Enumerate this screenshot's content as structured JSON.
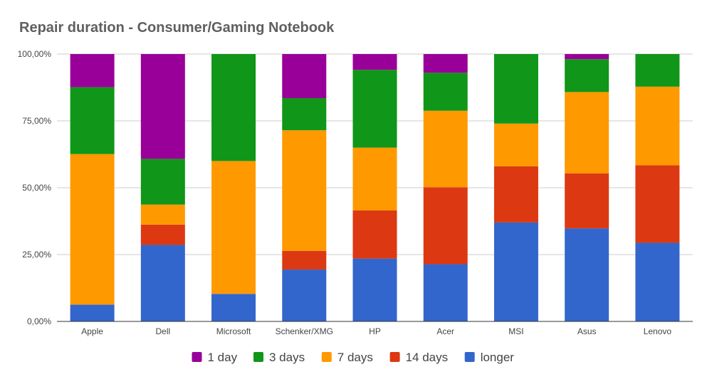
{
  "chart_data": {
    "type": "bar",
    "stacked": true,
    "percent": true,
    "title": "Repair duration - Consumer/Gaming Notebook",
    "xlabel": "",
    "ylabel": "",
    "ylim": [
      0,
      100
    ],
    "yticks": [
      0,
      25,
      50,
      75,
      100
    ],
    "ytick_labels": [
      "0,00%",
      "25,00%",
      "50,00%",
      "75,00%",
      "100,00%"
    ],
    "grid": true,
    "legend_position": "bottom",
    "categories": [
      "Apple",
      "Dell",
      "Microsoft",
      "Schenker/XMG",
      "HP",
      "Acer",
      "MSI",
      "Asus",
      "Lenovo"
    ],
    "series": [
      {
        "name": "longer",
        "color": "#3366cc",
        "values": [
          6.3,
          28.6,
          10.3,
          19.4,
          23.5,
          21.4,
          37.0,
          34.8,
          29.4
        ]
      },
      {
        "name": "14 days",
        "color": "#dc3912",
        "values": [
          0,
          7.6,
          0,
          7.0,
          18.0,
          28.8,
          21.0,
          20.6,
          29.0
        ]
      },
      {
        "name": "7 days",
        "color": "#ff9900",
        "values": [
          56.3,
          7.5,
          49.7,
          45.1,
          23.5,
          28.6,
          16.0,
          30.4,
          29.4
        ]
      },
      {
        "name": "3 days",
        "color": "#109618",
        "values": [
          25.0,
          17.1,
          40.0,
          12.0,
          29.1,
          14.2,
          26.0,
          12.3,
          12.2
        ]
      },
      {
        "name": "1 day",
        "color": "#990099",
        "values": [
          12.4,
          39.2,
          0,
          16.5,
          5.9,
          7.0,
          0,
          1.9,
          0
        ]
      }
    ],
    "legend_order": [
      "1 day",
      "3 days",
      "7 days",
      "14 days",
      "longer"
    ]
  }
}
